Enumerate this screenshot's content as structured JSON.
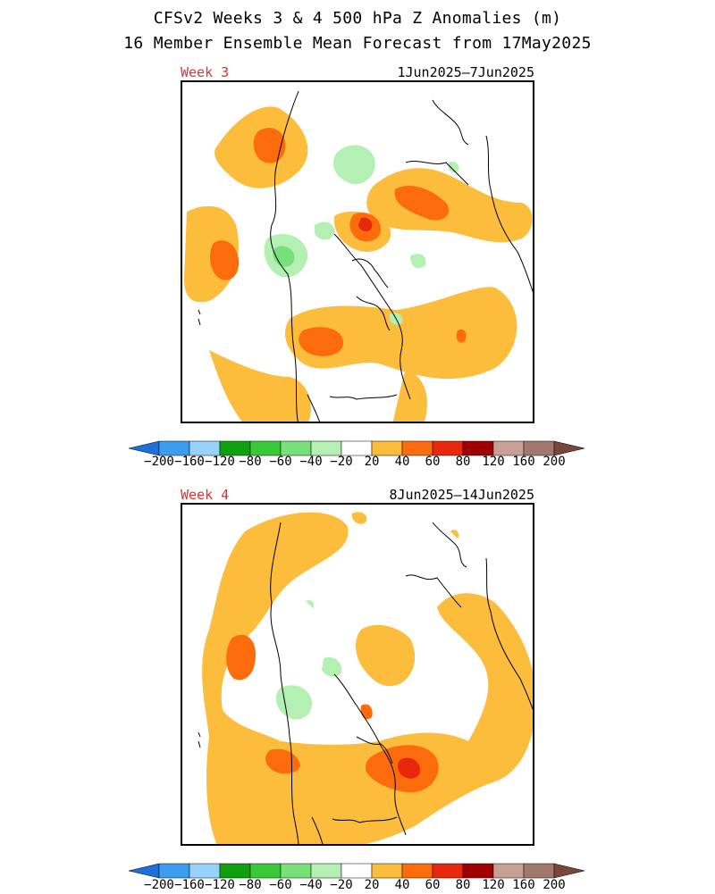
{
  "title_line1": "CFSv2 Weeks 3 & 4 500 hPa Z Anomalies (m)",
  "title_line2": "16 Member Ensemble Mean Forecast from 17May2025",
  "panels": [
    {
      "week_label": "Week 3",
      "date_range": "1Jun2025–7Jun2025"
    },
    {
      "week_label": "Week 4",
      "date_range": "8Jun2025–14Jun2025"
    }
  ],
  "colorbar": {
    "labels": [
      "−200",
      "−160",
      "−120",
      "−80",
      "−60",
      "−40",
      "−20",
      "20",
      "40",
      "60",
      "80",
      "120",
      "160",
      "200"
    ],
    "colors": [
      "#1e6fd9",
      "#3c9cf0",
      "#96d2fa",
      "#0fa00f",
      "#38c838",
      "#78e078",
      "#b4f0b4",
      "#ffffff",
      "#fcbc3c",
      "#fc6c0c",
      "#e8280c",
      "#a00000",
      "#c8a096",
      "#a0786e",
      "#78463c"
    ]
  },
  "legend_colors": {
    "pos20": "#fcbc3c",
    "pos40": "#fc6c0c",
    "pos60": "#e8280c",
    "neg20": "#b4f0b4",
    "neg40": "#78e078",
    "coast": "#000000"
  }
}
